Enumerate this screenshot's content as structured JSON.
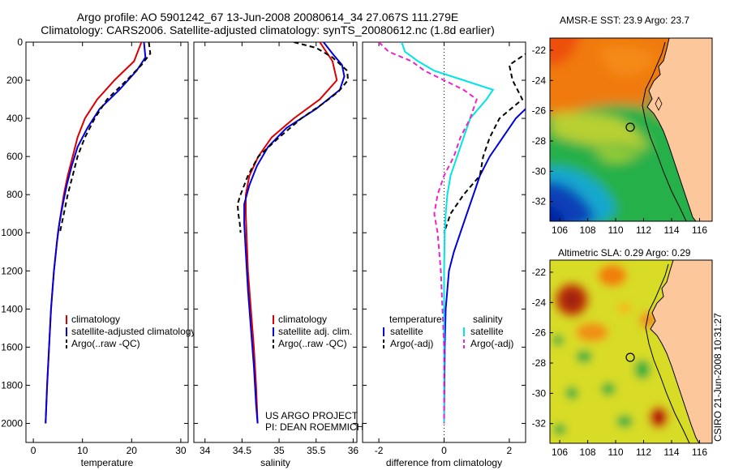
{
  "header": {
    "line1": "Argo profile: AO 5901242_67 13-Jun-2008 20080614_34 27.067S 111.279E",
    "line2": "Climatology: CARS2006. Satellite-adjusted climatology: synTS_20080612.nc (1.8d earlier)"
  },
  "credit": "CSIRO 21-Jun-2008 10:31:27",
  "project": {
    "line1": "US ARGO PROJECT",
    "line2": "PI: DEAN ROEMMICH"
  },
  "chart_data": [
    {
      "type": "line",
      "id": "temperature",
      "xlabel": "temperature",
      "ylabel": "",
      "xlim": [
        -1.5,
        31.5
      ],
      "ylim": [
        2100,
        0
      ],
      "y_inverted": true,
      "xticks": [
        0,
        10,
        20,
        30
      ],
      "yticks": [
        0,
        200,
        400,
        600,
        800,
        1000,
        1200,
        1400,
        1600,
        1800,
        2000
      ],
      "legend": [
        "climatology",
        "satellite-adjusted climatology",
        "Argo(..raw -QC)"
      ],
      "legend_position": "lower-right",
      "series": [
        {
          "name": "climatology",
          "color": "#dd0000",
          "style": "solid",
          "depth": [
            0,
            100,
            200,
            300,
            400,
            500,
            600,
            700,
            800,
            900,
            1000,
            1200,
            1400,
            1600,
            1800,
            2000
          ],
          "values": [
            22.0,
            20.5,
            16.5,
            13.0,
            10.5,
            9.0,
            8.0,
            7.0,
            6.2,
            5.6,
            5.0,
            4.2,
            3.6,
            3.2,
            2.8,
            2.5
          ]
        },
        {
          "name": "satellite-adjusted climatology",
          "color": "#0000dd",
          "style": "solid",
          "depth": [
            0,
            80,
            150,
            250,
            350,
            450,
            550,
            650,
            750,
            850,
            950,
            1050,
            1200,
            1400,
            1600,
            1800,
            2000
          ],
          "values": [
            22.5,
            22.8,
            21.0,
            17.5,
            13.5,
            11.0,
            9.0,
            7.8,
            6.8,
            6.0,
            5.3,
            4.8,
            4.2,
            3.6,
            3.2,
            2.8,
            2.5
          ]
        },
        {
          "name": "Argo(..raw -QC)",
          "color": "#000000",
          "style": "dashed",
          "depth": [
            0,
            60,
            120,
            200,
            300,
            400,
            500,
            600,
            700,
            800,
            900,
            1000
          ],
          "values": [
            23.5,
            23.8,
            22.0,
            19.0,
            15.0,
            12.5,
            10.5,
            9.0,
            8.0,
            7.0,
            6.2,
            5.4
          ]
        }
      ]
    },
    {
      "type": "line",
      "id": "salinity",
      "xlabel": "salinity",
      "ylabel": "",
      "xlim": [
        33.85,
        36.05
      ],
      "ylim": [
        2100,
        0
      ],
      "y_inverted": true,
      "xticks": [
        34,
        34.5,
        35,
        35.5,
        36
      ],
      "legend": [
        "climatology",
        "satellite adj. clim.",
        "Argo(..raw -QC)"
      ],
      "legend_position": "lower-right",
      "series": [
        {
          "name": "climatology",
          "color": "#dd0000",
          "style": "solid",
          "depth": [
            0,
            100,
            200,
            300,
            400,
            500,
            600,
            700,
            800,
            900,
            1000,
            1200,
            1400,
            1600,
            1800,
            2000
          ],
          "values": [
            35.55,
            35.72,
            35.78,
            35.55,
            35.2,
            34.9,
            34.72,
            34.6,
            34.55,
            34.55,
            34.56,
            34.58,
            34.62,
            34.66,
            34.69,
            34.71
          ]
        },
        {
          "name": "satellite adj. clim.",
          "color": "#0000dd",
          "style": "solid",
          "depth": [
            0,
            60,
            120,
            180,
            250,
            350,
            450,
            550,
            650,
            750,
            850,
            950,
            1100,
            1300,
            1500,
            1700,
            1900,
            2000
          ],
          "values": [
            35.6,
            35.72,
            35.85,
            35.88,
            35.82,
            35.5,
            35.1,
            34.85,
            34.7,
            34.6,
            34.53,
            34.53,
            34.55,
            34.58,
            34.62,
            34.66,
            34.69,
            34.71
          ]
        },
        {
          "name": "Argo(..raw -QC)",
          "color": "#000000",
          "style": "dashed",
          "depth": [
            0,
            30,
            80,
            150,
            200,
            260,
            320,
            400,
            500,
            600,
            700,
            800,
            850,
            900,
            950,
            1000
          ],
          "values": [
            35.2,
            35.5,
            35.72,
            35.92,
            35.93,
            35.8,
            35.6,
            35.3,
            35.0,
            34.72,
            34.58,
            34.48,
            34.44,
            34.45,
            34.47,
            34.48
          ]
        }
      ]
    },
    {
      "type": "line",
      "id": "difference",
      "xlabel": "difference from climatology",
      "ylabel": "",
      "xlim": [
        -2.5,
        2.5
      ],
      "ylim": [
        2100,
        0
      ],
      "y_inverted": true,
      "xticks": [
        -2,
        0,
        2
      ],
      "legend_headers": [
        "temperature",
        "salinity"
      ],
      "legend": [
        "satellite",
        "Argo(-adj)",
        "satellite",
        "Argo(-adj)"
      ],
      "legend_position": "lower-center",
      "series": [
        {
          "name": "satellite",
          "group": "temperature",
          "color": "#0000dd",
          "style": "solid",
          "depth": [
            0,
            50,
            100,
            150,
            200,
            300,
            400,
            500,
            600,
            700,
            800,
            900,
            1000,
            1100,
            1200,
            1400,
            1600,
            1800,
            2000
          ],
          "values": [
            2.5,
            2.8,
            3.2,
            3.5,
            3.3,
            2.8,
            2.2,
            1.8,
            1.4,
            1.1,
            0.9,
            0.7,
            0.5,
            0.3,
            0.15,
            0.05,
            0.02,
            0.01,
            0.0
          ]
        },
        {
          "name": "Argo(-adj)",
          "group": "temperature",
          "color": "#000000",
          "style": "dashed",
          "depth": [
            0,
            50,
            120,
            200,
            300,
            400,
            500,
            600,
            700,
            800,
            900,
            1000
          ],
          "values": [
            3.0,
            2.6,
            2.0,
            2.1,
            2.4,
            1.7,
            1.4,
            1.2,
            1.1,
            0.6,
            0.2,
            0.0
          ]
        },
        {
          "name": "satellite",
          "group": "salinity",
          "color": "#00e5e5",
          "style": "solid",
          "depth": [
            0,
            50,
            100,
            150,
            200,
            250,
            300,
            400,
            500,
            600,
            700,
            800,
            900,
            1000,
            1200,
            1400,
            1600,
            1800,
            2000
          ],
          "values": [
            -1.3,
            -1.2,
            -0.8,
            -0.3,
            0.6,
            1.5,
            1.3,
            0.8,
            0.6,
            0.4,
            0.2,
            0.1,
            0.05,
            0.02,
            0.0,
            0.0,
            0.0,
            0.0,
            0.0
          ]
        },
        {
          "name": "Argo(-adj)",
          "group": "salinity",
          "color": "#ee22cc",
          "style": "dashed",
          "depth": [
            0,
            50,
            100,
            150,
            200,
            250,
            300,
            400,
            500,
            600,
            700,
            800,
            900,
            1000,
            1200,
            1400,
            1600,
            1800,
            2000
          ],
          "values": [
            -2.0,
            -1.7,
            -1.0,
            -0.6,
            0.0,
            0.6,
            1.0,
            0.8,
            0.5,
            0.3,
            0.0,
            -0.2,
            -0.3,
            -0.2,
            -0.1,
            -0.05,
            0.0,
            0.0,
            0.0
          ]
        }
      ]
    },
    {
      "type": "heatmap",
      "id": "sst_map",
      "title": "AMSR-E SST: 23.9 Argo: 23.7",
      "xticks": [
        106,
        108,
        110,
        112,
        114,
        116
      ],
      "yticks": [
        -22,
        -24,
        -26,
        -28,
        -30,
        -32
      ],
      "xlim": [
        105.3,
        116.9
      ],
      "ylim": [
        -33.3,
        -21.2
      ],
      "marker": {
        "lon": 111.28,
        "lat": -27.07
      }
    },
    {
      "type": "heatmap",
      "id": "sla_map",
      "title": "Altimetric SLA: 0.29 Argo: 0.29",
      "xticks": [
        106,
        108,
        110,
        112,
        114,
        116
      ],
      "yticks": [
        -22,
        -24,
        -26,
        -28,
        -30,
        -32
      ],
      "xlim": [
        105.3,
        116.9
      ],
      "ylim": [
        -33.3,
        -21.2
      ],
      "marker": {
        "lon": 111.28,
        "lat": -27.07
      }
    }
  ]
}
